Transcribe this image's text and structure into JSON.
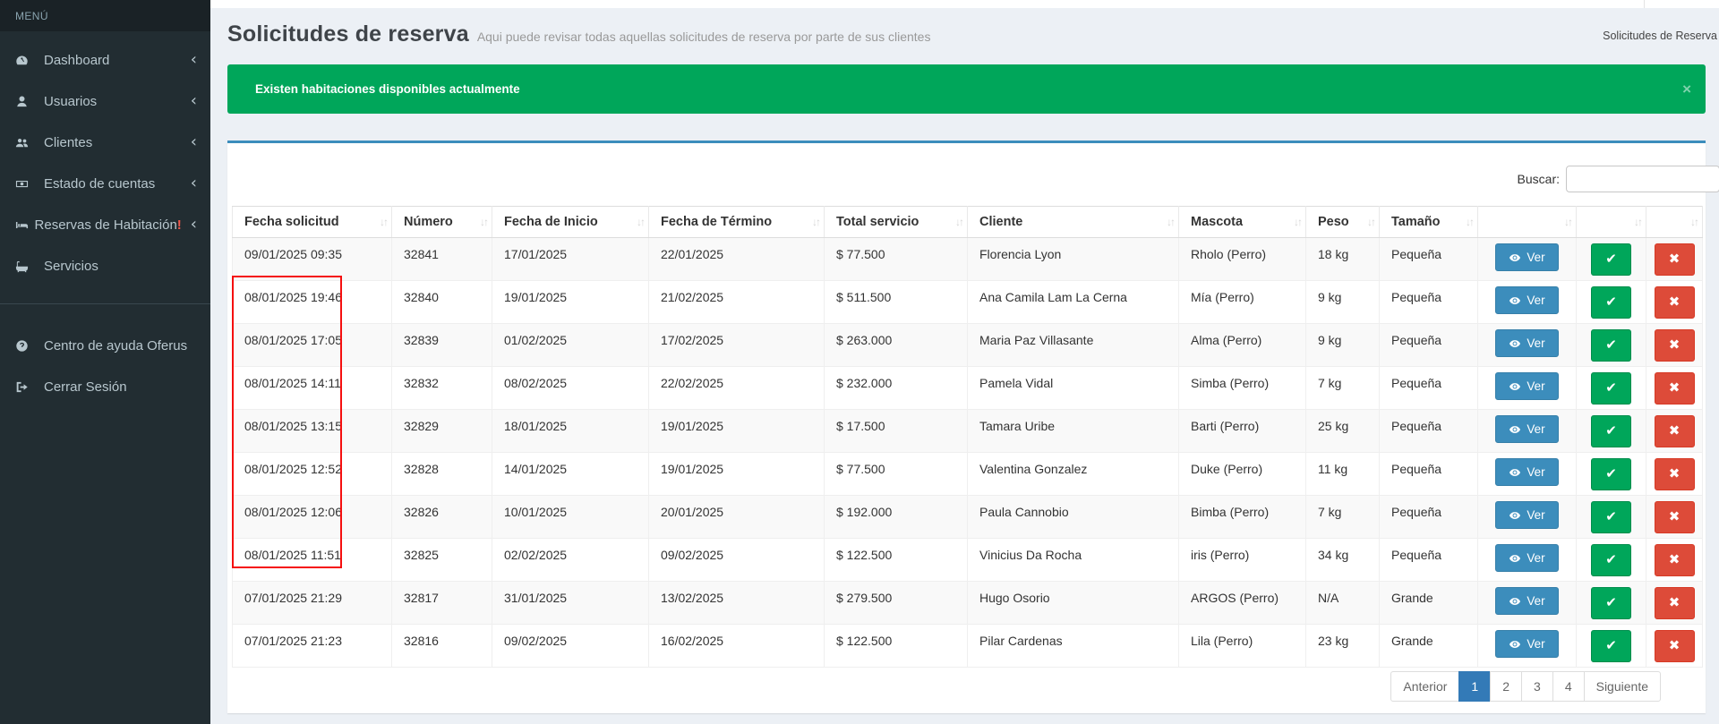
{
  "topbar": {
    "breadcrumb": "Solicitudes de Reserva"
  },
  "sidebar": {
    "menu_label": "MENÚ",
    "items": [
      {
        "label": "Dashboard",
        "icon": "dashboard-icon",
        "chevron": true,
        "alert": ""
      },
      {
        "label": "Usuarios",
        "icon": "user-icon",
        "chevron": true,
        "alert": ""
      },
      {
        "label": "Clientes",
        "icon": "users-icon",
        "chevron": true,
        "alert": ""
      },
      {
        "label": "Estado de cuentas",
        "icon": "money-icon",
        "chevron": true,
        "alert": ""
      },
      {
        "label": "Reservas de Habitación",
        "icon": "bed-icon",
        "chevron": true,
        "alert": "!"
      },
      {
        "label": "Servicios",
        "icon": "bath-icon",
        "chevron": false,
        "alert": ""
      }
    ],
    "footer_items": [
      {
        "label": "Centro de ayuda Oferus",
        "icon": "help-icon"
      },
      {
        "label": "Cerrar Sesión",
        "icon": "logout-icon"
      }
    ]
  },
  "header": {
    "title": "Solicitudes de reserva",
    "subtitle": "Aqui puede revisar todas aquellas solicitudes de reserva por parte de sus clientes"
  },
  "alert": {
    "message": "Existen habitaciones disponibles actualmente",
    "close_label": "×"
  },
  "search": {
    "label": "Buscar:",
    "value": ""
  },
  "table": {
    "columns": [
      "Fecha solicitud",
      "Número",
      "Fecha de Inicio",
      "Fecha de Término",
      "Total servicio",
      "Cliente",
      "Mascota",
      "Peso",
      "Tamaño",
      "",
      "",
      ""
    ],
    "rows": [
      {
        "fecha_solicitud": "09/01/2025 09:35",
        "numero": "32841",
        "inicio": "17/01/2025",
        "termino": "22/01/2025",
        "total": "$ 77.500",
        "cliente": "Florencia Lyon",
        "mascota": "Rholo (Perro)",
        "peso": "18 kg",
        "tamano": "Pequeña"
      },
      {
        "fecha_solicitud": "08/01/2025 19:46",
        "numero": "32840",
        "inicio": "19/01/2025",
        "termino": "21/02/2025",
        "total": "$ 511.500",
        "cliente": "Ana Camila Lam La Cerna",
        "mascota": "Mía (Perro)",
        "peso": "9 kg",
        "tamano": "Pequeña"
      },
      {
        "fecha_solicitud": "08/01/2025 17:05",
        "numero": "32839",
        "inicio": "01/02/2025",
        "termino": "17/02/2025",
        "total": "$ 263.000",
        "cliente": "Maria Paz Villasante",
        "mascota": "Alma (Perro)",
        "peso": "9 kg",
        "tamano": "Pequeña"
      },
      {
        "fecha_solicitud": "08/01/2025 14:11",
        "numero": "32832",
        "inicio": "08/02/2025",
        "termino": "22/02/2025",
        "total": "$ 232.000",
        "cliente": "Pamela Vidal",
        "mascota": "Simba (Perro)",
        "peso": "7 kg",
        "tamano": "Pequeña"
      },
      {
        "fecha_solicitud": "08/01/2025 13:15",
        "numero": "32829",
        "inicio": "18/01/2025",
        "termino": "19/01/2025",
        "total": "$ 17.500",
        "cliente": "Tamara Uribe",
        "mascota": "Barti (Perro)",
        "peso": "25 kg",
        "tamano": "Pequeña"
      },
      {
        "fecha_solicitud": "08/01/2025 12:52",
        "numero": "32828",
        "inicio": "14/01/2025",
        "termino": "19/01/2025",
        "total": "$ 77.500",
        "cliente": "Valentina Gonzalez",
        "mascota": "Duke (Perro)",
        "peso": "11 kg",
        "tamano": "Pequeña"
      },
      {
        "fecha_solicitud": "08/01/2025 12:06",
        "numero": "32826",
        "inicio": "10/01/2025",
        "termino": "20/01/2025",
        "total": "$ 192.000",
        "cliente": "Paula Cannobio",
        "mascota": "Bimba (Perro)",
        "peso": "7 kg",
        "tamano": "Pequeña"
      },
      {
        "fecha_solicitud": "08/01/2025 11:51",
        "numero": "32825",
        "inicio": "02/02/2025",
        "termino": "09/02/2025",
        "total": "$ 122.500",
        "cliente": "Vinicius Da Rocha",
        "mascota": "iris (Perro)",
        "peso": "34 kg",
        "tamano": "Pequeña"
      },
      {
        "fecha_solicitud": "07/01/2025 21:29",
        "numero": "32817",
        "inicio": "31/01/2025",
        "termino": "13/02/2025",
        "total": "$ 279.500",
        "cliente": "Hugo Osorio",
        "mascota": "ARGOS (Perro)",
        "peso": "N/A",
        "tamano": "Grande"
      },
      {
        "fecha_solicitud": "07/01/2025 21:23",
        "numero": "32816",
        "inicio": "09/02/2025",
        "termino": "16/02/2025",
        "total": "$ 122.500",
        "cliente": "Pilar Cardenas",
        "mascota": "Lila (Perro)",
        "peso": "23 kg",
        "tamano": "Grande"
      }
    ],
    "actions": {
      "ver_label": "Ver",
      "approve_glyph": "✔",
      "reject_glyph": "✖"
    },
    "sort_glyph": "↓↑"
  },
  "pagination": {
    "previous": "Anterior",
    "pages": [
      "1",
      "2",
      "3",
      "4"
    ],
    "active_page": "1",
    "next": "Siguiente"
  },
  "colors": {
    "sidebar_bg": "#222d32",
    "sidebar_header_bg": "#1a2226",
    "sidebar_text": "#b8c7ce",
    "alert_green": "#00a65a",
    "primary_blue": "#3c8dbc",
    "danger_red": "#dd4b39",
    "pagination_active": "#337ab7",
    "annotation_red": "#f50f0f",
    "content_bg": "#ecf0f5"
  }
}
